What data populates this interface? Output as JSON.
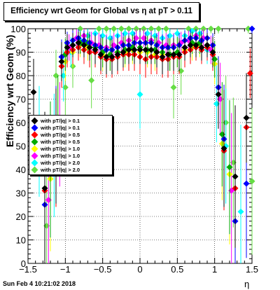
{
  "title": "Efficiency wrt Geom for Global vs η at pT > 0.11",
  "timestamp": "Sun Feb  4 10:21:02 2018",
  "xlabel": "η",
  "ylabel": "Efficiency wrt Geom (%)",
  "chart_data": {
    "type": "scatter",
    "title": "Efficiency wrt Geom for Global vs η at pT > 0.11",
    "xlabel": "η",
    "ylabel": "Efficiency wrt Geom (%)",
    "xlim": [
      -1.5,
      1.5
    ],
    "ylim": [
      0,
      100
    ],
    "x_ticks": [
      "−1.5",
      "−1",
      "−0.5",
      "0",
      "0.5",
      "1",
      "1.5"
    ],
    "y_ticks": [
      "0",
      "10",
      "20",
      "30",
      "40",
      "50",
      "60",
      "70",
      "80",
      "90",
      "100"
    ],
    "grid": true,
    "legend_position": "center-left",
    "series": [
      {
        "name": "with pT/|q| > 0.1",
        "color": "#000000",
        "x": [
          -1.425,
          -1.275,
          -1.125,
          -1.05,
          -0.975,
          -0.9,
          -0.825,
          -0.75,
          -0.675,
          -0.6,
          -0.525,
          -0.45,
          -0.375,
          -0.3,
          -0.225,
          -0.15,
          -0.075,
          0,
          0.075,
          0.15,
          0.225,
          0.3,
          0.375,
          0.45,
          0.525,
          0.6,
          0.675,
          0.75,
          0.825,
          0.9,
          0.975,
          1.05,
          1.125,
          1.275,
          1.425
        ],
        "y": [
          73,
          32,
          50,
          86,
          92,
          93,
          94,
          93,
          92,
          91,
          89,
          88,
          88,
          89,
          90,
          91,
          91,
          91,
          91,
          91,
          90,
          88,
          89,
          89,
          89,
          92,
          93,
          93,
          92,
          93,
          90,
          72,
          49,
          37,
          62
        ]
      },
      {
        "name": "with pT/|q| > 0.1",
        "color": "#0000ff",
        "x": [
          -1.275,
          -1.125,
          -1.05,
          -0.975,
          -0.9,
          -0.825,
          -0.75,
          -0.675,
          -0.6,
          -0.525,
          -0.45,
          -0.375,
          -0.3,
          -0.225,
          -0.15,
          -0.075,
          0,
          0.075,
          0.15,
          0.225,
          0.3,
          0.375,
          0.45,
          0.525,
          0.6,
          0.675,
          0.75,
          0.825,
          0.9,
          0.975,
          1.05,
          1.125,
          1.275,
          1.425,
          1.5
        ],
        "y": [
          25,
          52,
          88,
          94,
          95,
          96,
          95,
          94,
          93,
          92,
          91,
          91,
          92,
          93,
          93,
          94,
          94,
          94,
          94,
          93,
          92,
          92,
          92,
          93,
          95,
          96,
          96,
          95,
          96,
          93,
          75,
          53,
          18,
          34,
          100
        ]
      },
      {
        "name": "with pT/|q| > 0.5",
        "color": "#ff0000",
        "x": [
          -1.275,
          -1.125,
          -1.05,
          -0.975,
          -0.9,
          -0.825,
          -0.75,
          -0.675,
          -0.6,
          -0.525,
          -0.45,
          -0.375,
          -0.3,
          -0.225,
          -0.15,
          -0.075,
          0,
          0.075,
          0.15,
          0.225,
          0.3,
          0.375,
          0.45,
          0.525,
          0.6,
          0.675,
          0.75,
          0.825,
          0.9,
          0.975,
          1.05,
          1.125,
          1.275,
          1.425,
          1.475
        ],
        "y": [
          31,
          49,
          84,
          90,
          91,
          92,
          91,
          90,
          90,
          88,
          87,
          87,
          88,
          89,
          89,
          89,
          88,
          87,
          88,
          88,
          87,
          87,
          88,
          88,
          90,
          91,
          92,
          91,
          92,
          89,
          75,
          48,
          32,
          58,
          81
        ]
      },
      {
        "name": "with pT/|q| > 0.5",
        "color": "#00aa00",
        "x": [
          -1.2,
          -1.1,
          -1.0,
          -0.9,
          -0.8,
          -0.7,
          -0.6,
          -0.5,
          -0.4,
          -0.3,
          -0.2,
          -0.1,
          0,
          0.1,
          0.2,
          0.3,
          0.4,
          0.5,
          0.6,
          0.7,
          0.8,
          0.9,
          1.0,
          1.1,
          1.2
        ],
        "y": [
          40,
          60,
          89,
          93,
          94,
          94,
          92,
          90,
          89,
          90,
          91,
          92,
          92,
          91,
          91,
          90,
          89,
          90,
          92,
          94,
          94,
          93,
          87,
          55,
          41
        ]
      },
      {
        "name": "with pT/|q| > 1.0",
        "color": "#ffff00",
        "x": [
          -1.2,
          -1.1,
          -1.0,
          -0.9,
          -0.8,
          -0.7,
          -0.6,
          -0.5,
          -0.4,
          -0.3,
          -0.2,
          -0.1,
          0,
          0.1,
          0.2,
          0.3,
          0.4,
          0.5,
          0.6,
          0.7,
          0.8,
          0.9,
          1.0,
          1.1,
          1.2
        ],
        "y": [
          36,
          58,
          86,
          90,
          93,
          92,
          91,
          89,
          89,
          90,
          90,
          91,
          90,
          90,
          89,
          89,
          89,
          90,
          91,
          92,
          93,
          92,
          85,
          51,
          38
        ]
      },
      {
        "name": "with pT/|q| > 1.0",
        "color": "#ff00ff",
        "x": [
          -1.225,
          -1.075,
          -0.95,
          -0.85,
          -0.75,
          -0.65,
          -0.55,
          -0.45,
          -0.35,
          -0.25,
          -0.15,
          -0.05,
          0.05,
          0.15,
          0.25,
          0.35,
          0.45,
          0.55,
          0.65,
          0.75,
          0.85,
          0.95,
          1.075,
          1.225
        ],
        "y": [
          27,
          55,
          92,
          96,
          97,
          94,
          93,
          92,
          93,
          94,
          95,
          96,
          96,
          95,
          94,
          93,
          93,
          94,
          95,
          97,
          96,
          91,
          70,
          31
        ]
      },
      {
        "name": "with pT/|q| > 2.0",
        "color": "#00ffff",
        "x": [
          -1.35,
          -1.15,
          -1.025,
          -0.925,
          -0.8,
          -0.7,
          -0.6,
          -0.5,
          -0.4,
          -0.3,
          -0.2,
          -0.1,
          0,
          0.1,
          0.2,
          0.3,
          0.4,
          0.5,
          0.6,
          0.7,
          0.8,
          0.9,
          1.025,
          1.15,
          1.35
        ],
        "y": [
          52,
          46,
          80,
          90,
          95,
          97,
          98,
          97,
          96,
          97,
          98,
          98,
          72,
          98,
          97,
          96,
          97,
          98,
          97,
          99,
          98,
          91,
          68,
          50,
          22
        ]
      },
      {
        "name": "with pT/|q| > 2.0",
        "color": "#66dd44",
        "x": [
          -1.25,
          -1.125,
          -1.0,
          -0.9,
          -0.8,
          -0.65,
          -0.55,
          -0.45,
          -0.35,
          -0.25,
          -0.15,
          -0.05,
          0.05,
          0.15,
          0.25,
          0.35,
          0.45,
          0.55,
          0.65,
          0.75,
          0.85,
          0.95,
          1.05,
          1.15,
          1.25,
          1.45,
          1.5
        ],
        "y": [
          16,
          80,
          75,
          84,
          100,
          78,
          100,
          100,
          100,
          100,
          100,
          100,
          100,
          100,
          100,
          100,
          75,
          82,
          100,
          100,
          100,
          100,
          100,
          60,
          43,
          100,
          35
        ]
      }
    ]
  }
}
